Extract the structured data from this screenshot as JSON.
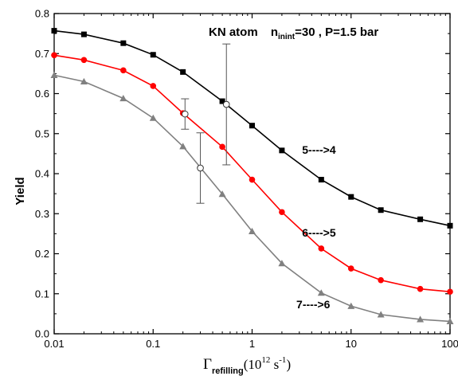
{
  "chart_data": {
    "type": "line",
    "title": {
      "main": "KN atom",
      "n": "n",
      "n_sub": "inint",
      "rest": "=30 , P=1.5 bar"
    },
    "ylabel": "Yield",
    "xlabel": {
      "symbol": "Γ",
      "sub": "refilling",
      "unit_open": "(10",
      "unit_exp": "12",
      "unit_s": " s",
      "unit_neg": "-1",
      "unit_close": ")"
    },
    "xscale": "log",
    "xlim": [
      0.01,
      100
    ],
    "ylim": [
      0.0,
      0.8
    ],
    "x_ticks": [
      {
        "value": 0.01,
        "label": "0.01"
      },
      {
        "value": 0.1,
        "label": "0.1"
      },
      {
        "value": 1,
        "label": "1"
      },
      {
        "value": 10,
        "label": "10"
      },
      {
        "value": 100,
        "label": "100"
      }
    ],
    "y_ticks": [
      {
        "value": 0.0,
        "label": "0.0"
      },
      {
        "value": 0.1,
        "label": "0.1"
      },
      {
        "value": 0.2,
        "label": "0.2"
      },
      {
        "value": 0.3,
        "label": "0.3"
      },
      {
        "value": 0.4,
        "label": "0.4"
      },
      {
        "value": 0.5,
        "label": "0.5"
      },
      {
        "value": 0.6,
        "label": "0.6"
      },
      {
        "value": 0.7,
        "label": "0.7"
      },
      {
        "value": 0.8,
        "label": "0.8"
      }
    ],
    "grid": false,
    "series": [
      {
        "marker": "square",
        "color": "#000000",
        "x": [
          0.01,
          0.02,
          0.05,
          0.1,
          0.2,
          0.5,
          1,
          2,
          5,
          10,
          20,
          50,
          100
        ],
        "y": [
          0.757,
          0.748,
          0.726,
          0.697,
          0.654,
          0.581,
          0.52,
          0.458,
          0.385,
          0.342,
          0.309,
          0.286,
          0.27
        ]
      },
      {
        "marker": "circle",
        "color": "#ff0000",
        "x": [
          0.01,
          0.02,
          0.05,
          0.1,
          0.2,
          0.5,
          1,
          2,
          5,
          10,
          20,
          50,
          100
        ],
        "y": [
          0.696,
          0.684,
          0.658,
          0.619,
          0.551,
          0.467,
          0.385,
          0.304,
          0.213,
          0.163,
          0.134,
          0.112,
          0.105
        ]
      },
      {
        "marker": "triangle",
        "color": "#808080",
        "x": [
          0.01,
          0.02,
          0.05,
          0.1,
          0.2,
          0.5,
          1,
          2,
          5,
          10,
          20,
          50,
          100
        ],
        "y": [
          0.646,
          0.63,
          0.588,
          0.539,
          0.468,
          0.349,
          0.256,
          0.176,
          0.102,
          0.069,
          0.048,
          0.036,
          0.031
        ]
      }
    ],
    "experimental": [
      {
        "x": 0.3,
        "y": 0.414,
        "err_low": 0.326,
        "err_high": 0.502
      },
      {
        "x": 0.55,
        "y": 0.573,
        "err_low": 0.422,
        "err_high": 0.724
      },
      {
        "x": 0.21,
        "y": 0.549,
        "err_low": 0.511,
        "err_high": 0.587
      }
    ],
    "annotations": [
      {
        "text": "5---->4",
        "x": 3.2,
        "y": 0.46
      },
      {
        "text": "6---->5",
        "x": 3.2,
        "y": 0.253
      },
      {
        "text": "7---->6",
        "x": 2.8,
        "y": 0.074
      }
    ]
  }
}
